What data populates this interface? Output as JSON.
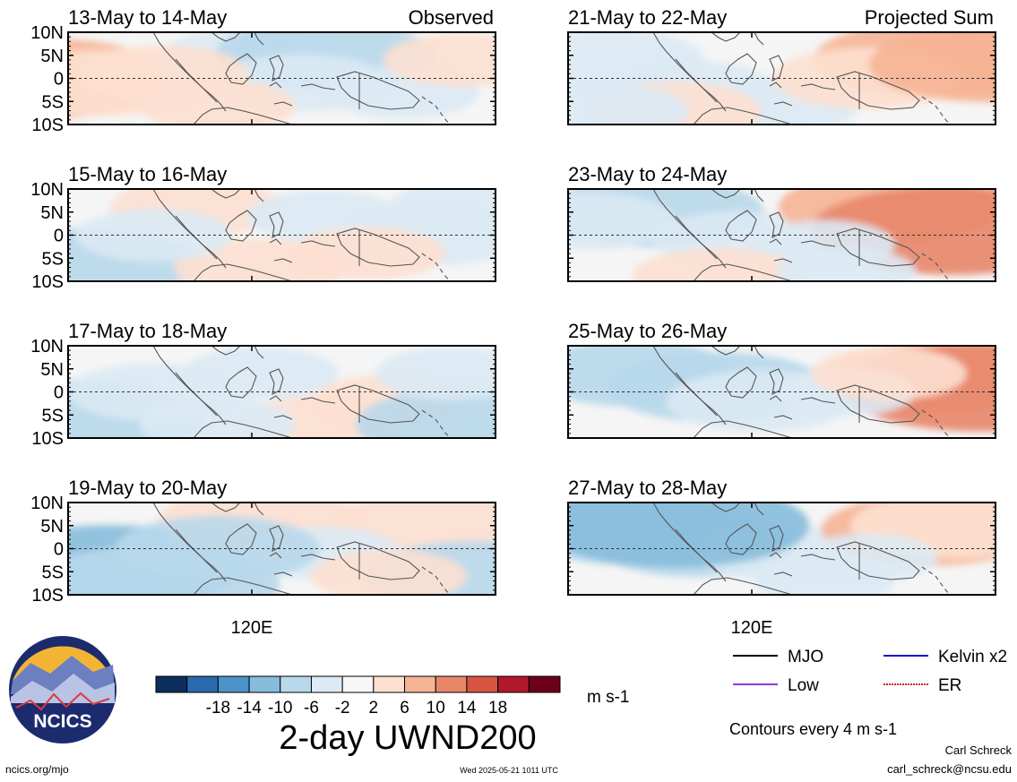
{
  "panels": [
    {
      "id": "p1",
      "title": "13-May to 14-May",
      "tag": "Observed",
      "anom": [
        [
          -0.05,
          0.5,
          9
        ],
        [
          0.08,
          0.55,
          6
        ],
        [
          0.42,
          0.3,
          -5
        ],
        [
          0.6,
          0.25,
          -7
        ],
        [
          0.55,
          0.55,
          -4
        ],
        [
          0.78,
          0.65,
          -3
        ],
        [
          0.22,
          0.45,
          4
        ],
        [
          0.92,
          0.3,
          3
        ],
        [
          0.35,
          0.8,
          3
        ]
      ]
    },
    {
      "id": "p2",
      "title": "15-May to 16-May",
      "tag": "",
      "anom": [
        [
          0.05,
          0.8,
          -7
        ],
        [
          0.3,
          0.2,
          4
        ],
        [
          0.45,
          0.85,
          4
        ],
        [
          0.6,
          0.3,
          -3
        ],
        [
          0.85,
          0.5,
          -5
        ],
        [
          0.95,
          0.2,
          -4
        ],
        [
          0.2,
          0.5,
          -3
        ],
        [
          0.7,
          0.7,
          3
        ]
      ]
    },
    {
      "id": "p3",
      "title": "17-May to 18-May",
      "tag": "",
      "anom": [
        [
          0.02,
          0.8,
          -9
        ],
        [
          0.2,
          0.5,
          -4
        ],
        [
          0.45,
          0.3,
          -3
        ],
        [
          0.6,
          0.85,
          4
        ],
        [
          0.75,
          0.6,
          3
        ],
        [
          0.95,
          0.85,
          -8
        ],
        [
          0.9,
          0.3,
          -3
        ],
        [
          0.35,
          0.85,
          -3
        ]
      ]
    },
    {
      "id": "p4",
      "title": "19-May to 20-May",
      "tag": "",
      "anom": [
        [
          0.1,
          0.7,
          -10
        ],
        [
          0.2,
          0.9,
          -9
        ],
        [
          0.45,
          0.2,
          6
        ],
        [
          0.85,
          0.25,
          6
        ],
        [
          0.6,
          0.55,
          -3
        ],
        [
          0.95,
          0.8,
          -7
        ],
        [
          0.35,
          0.5,
          -6
        ],
        [
          0.75,
          0.8,
          3
        ]
      ]
    },
    {
      "id": "p5",
      "title": "21-May to 22-May",
      "tag": "Projected Sum",
      "anom": [
        [
          0.1,
          0.3,
          -5
        ],
        [
          0.3,
          0.6,
          -3
        ],
        [
          0.5,
          0.8,
          -3
        ],
        [
          0.85,
          0.3,
          8
        ],
        [
          0.7,
          0.5,
          5
        ],
        [
          0.98,
          0.35,
          8
        ],
        [
          0.25,
          0.85,
          4
        ],
        [
          0.1,
          0.85,
          -3
        ]
      ]
    },
    {
      "id": "p6",
      "title": "23-May to 24-May",
      "tag": "",
      "anom": [
        [
          0.2,
          0.25,
          -7
        ],
        [
          0.05,
          0.35,
          -4
        ],
        [
          0.4,
          0.55,
          -4
        ],
        [
          0.75,
          0.2,
          7
        ],
        [
          0.9,
          0.45,
          11
        ],
        [
          0.6,
          0.6,
          -2
        ],
        [
          0.35,
          0.95,
          4
        ],
        [
          0.65,
          0.9,
          -2
        ]
      ]
    },
    {
      "id": "p7",
      "title": "25-May to 26-May",
      "tag": "",
      "anom": [
        [
          0.15,
          0.3,
          -6
        ],
        [
          0.35,
          0.45,
          -7
        ],
        [
          0.45,
          0.6,
          -5
        ],
        [
          0.85,
          0.35,
          7
        ],
        [
          0.97,
          0.45,
          11
        ],
        [
          0.65,
          0.5,
          -2
        ],
        [
          0.75,
          0.3,
          3
        ]
      ]
    },
    {
      "id": "p8",
      "title": "27-May to 28-May",
      "tag": "",
      "anom": [
        [
          0.15,
          0.3,
          -7
        ],
        [
          0.3,
          0.45,
          -6
        ],
        [
          0.5,
          0.55,
          -4
        ],
        [
          0.85,
          0.3,
          7
        ],
        [
          0.9,
          0.25,
          6
        ],
        [
          0.7,
          0.6,
          -2
        ],
        [
          0.6,
          0.85,
          -2
        ],
        [
          0.25,
          0.25,
          -10
        ]
      ]
    }
  ],
  "lat_labels": [
    "10N",
    "5N",
    "0",
    "5S",
    "10S"
  ],
  "lon_label": "120E",
  "colorbar": {
    "colors": [
      "#0b2e5a",
      "#2a6aad",
      "#4b93c8",
      "#86bcdc",
      "#b8d8eb",
      "#dbeaf4",
      "#f7f7f7",
      "#fde0d0",
      "#f6b495",
      "#e8866a",
      "#d6553f",
      "#b2182b",
      "#6d001c"
    ],
    "ticks": [
      "-18",
      "-14",
      "-10",
      "-6",
      "-2",
      "2",
      "6",
      "10",
      "14",
      "18"
    ],
    "units": "m s-1"
  },
  "map_title": "2-day UWND200",
  "legend": {
    "items": [
      {
        "label": "MJO",
        "color": "#000000",
        "style": "solid"
      },
      {
        "label": "Kelvin x2",
        "color": "#1010cc",
        "style": "solid"
      },
      {
        "label": "Low",
        "color": "#9933dd",
        "style": "solid"
      },
      {
        "label": "ER",
        "color": "#cc2222",
        "style": "dotted"
      }
    ],
    "note": "Contours every 4 m s-1"
  },
  "logo": {
    "text": "NCICS"
  },
  "footer": {
    "left": "ncics.org/mjo",
    "center": "Wed 2025-05-21 1011 UTC",
    "author": "Carl Schreck",
    "email": "carl_schreck@ncsu.edu"
  }
}
